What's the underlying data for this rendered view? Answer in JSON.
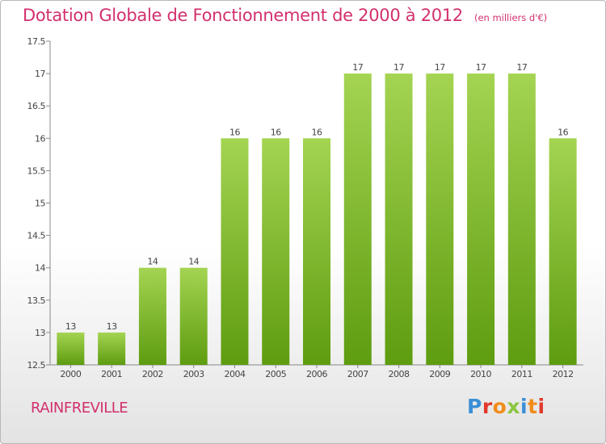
{
  "header": {
    "title": "Dotation Globale de Fonctionnement de 2000 à 2012",
    "subtitle": "(en milliers d'€)"
  },
  "footer": {
    "commune": "RAINFREVILLE",
    "logo_text": "Proxiti",
    "logo_colors": [
      "#3a8fd6",
      "#e0392b",
      "#f28c1a",
      "#8cc63f",
      "#3a8fd6",
      "#f28c1a",
      "#e0392b"
    ]
  },
  "chart_data": {
    "type": "bar",
    "categories": [
      "2000",
      "2001",
      "2002",
      "2003",
      "2004",
      "2005",
      "2006",
      "2007",
      "2008",
      "2009",
      "2010",
      "2011",
      "2012"
    ],
    "values": [
      13,
      13,
      14,
      14,
      16,
      16,
      16,
      17,
      17,
      17,
      17,
      17,
      16
    ],
    "data_labels": [
      "13",
      "13",
      "14",
      "14",
      "16",
      "16",
      "16",
      "17",
      "17",
      "17",
      "17",
      "17",
      "16"
    ],
    "ylim": [
      12.5,
      17.5
    ],
    "yticks": [
      12.5,
      13,
      13.5,
      14,
      14.5,
      15,
      15.5,
      16,
      16.5,
      17,
      17.5
    ],
    "ytick_labels": [
      "12.5",
      "13",
      "13.5",
      "14",
      "14.5",
      "15",
      "15.5",
      "16",
      "16.5",
      "17",
      "17.5"
    ],
    "grid": false,
    "colors": {
      "bar_light": "#a4d452",
      "bar_dark": "#5e9c10",
      "text": "#444444",
      "axis": "#888888"
    }
  }
}
